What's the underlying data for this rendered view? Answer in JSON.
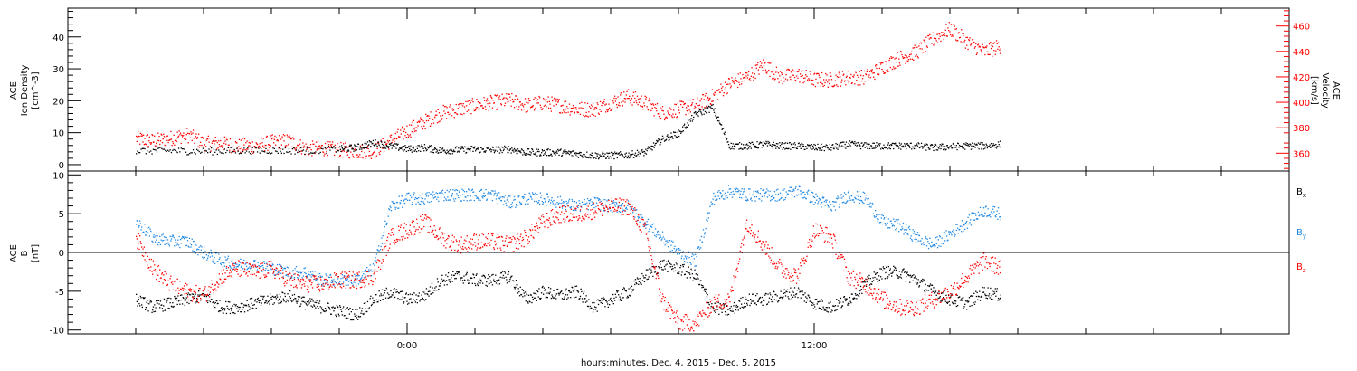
{
  "chart_data": [
    {
      "type": "scatter",
      "panel": "ion-density-velocity",
      "ylabel": [
        "ACE",
        "Ion Density",
        "[cm^-3]"
      ],
      "y2label": [
        "ACE",
        "Velocity",
        "[km/s]"
      ],
      "ylim": [
        -2,
        49
      ],
      "yticks": [
        0,
        10,
        20,
        30,
        40
      ],
      "y2lim": [
        346,
        474
      ],
      "y2ticks": [
        360,
        380,
        400,
        420,
        440,
        460
      ],
      "series": [
        {
          "color": "#000000",
          "axis": "left",
          "x": [
            -8,
            -7,
            -6,
            -5,
            -4,
            -3,
            -2,
            -1.5,
            -1,
            -0.5,
            0,
            0.5,
            1,
            1.5,
            2,
            2.5,
            3,
            3.5,
            4,
            4.5,
            5,
            5.5,
            6,
            6.5,
            7,
            7.5,
            8,
            8.5,
            9,
            9.5,
            10,
            10.5,
            11,
            11.5,
            12,
            12.5,
            13,
            13.5,
            14,
            14.5,
            15,
            15.5,
            16,
            16.5,
            17,
            17.5
          ],
          "y": [
            4.5,
            4.5,
            4.3,
            4.5,
            4.6,
            4.5,
            5,
            5.5,
            7,
            6,
            5,
            5.5,
            4.5,
            4.8,
            5,
            4.8,
            5,
            4,
            4,
            4,
            3.5,
            3,
            3,
            3.2,
            4,
            8,
            10,
            16,
            18,
            6,
            6,
            6.5,
            6,
            6,
            5.5,
            5.5,
            6.5,
            6,
            6,
            6,
            6,
            5.5,
            5.8,
            6,
            6,
            6.5
          ]
        },
        {
          "color": "#ff0000",
          "axis": "right",
          "x": [
            -8,
            -7.5,
            -7,
            -6.5,
            -6,
            -5.5,
            -5,
            -4.5,
            -4,
            -3.5,
            -3,
            -2.5,
            -2,
            -1.5,
            -1,
            -0.5,
            0,
            0.5,
            1,
            1.5,
            2,
            2.5,
            3,
            3.5,
            4,
            4.5,
            5,
            5.5,
            6,
            6.5,
            7,
            7.5,
            8,
            8.5,
            9,
            9.5,
            10,
            10.5,
            11,
            11.5,
            12,
            12.5,
            13,
            13.5,
            14,
            14.5,
            15,
            15.5,
            16,
            16.5,
            17,
            17.5
          ],
          "y": [
            372,
            370,
            372,
            375,
            368,
            368,
            366,
            366,
            369,
            370,
            364,
            364,
            363,
            362,
            362,
            370,
            378,
            385,
            392,
            395,
            398,
            400,
            402,
            398,
            400,
            398,
            395,
            395,
            400,
            405,
            400,
            392,
            395,
            398,
            405,
            415,
            420,
            430,
            420,
            422,
            418,
            418,
            420,
            420,
            428,
            435,
            440,
            450,
            458,
            448,
            440,
            445
          ]
        }
      ]
    },
    {
      "type": "scatter",
      "panel": "magnetic-field",
      "ylabel": [
        "ACE",
        "B",
        "[nT]"
      ],
      "ylim": [
        -10.5,
        10.5
      ],
      "yticks": [
        -10,
        -5,
        0,
        5,
        10
      ],
      "zero_line": true,
      "series": [
        {
          "name": "Bx",
          "color": "#000000",
          "x": [
            -8,
            -7.5,
            -7,
            -6.5,
            -6,
            -5.5,
            -5,
            -4.5,
            -4,
            -3.5,
            -3,
            -2.5,
            -2,
            -1.5,
            -1,
            -0.5,
            0,
            0.5,
            1,
            1.5,
            2,
            2.5,
            3,
            3.5,
            4,
            4.5,
            5,
            5.5,
            6,
            6.5,
            7,
            7.5,
            8,
            8.5,
            9,
            9.5,
            10,
            10.5,
            11,
            11.5,
            12,
            12.5,
            13,
            13.5,
            14,
            14.5,
            15,
            15.5,
            16,
            16.5,
            17,
            17.5
          ],
          "y": [
            -6,
            -7,
            -6.5,
            -6,
            -5.5,
            -7,
            -7,
            -6.5,
            -6,
            -5.5,
            -6.5,
            -7,
            -7.5,
            -8,
            -6,
            -5,
            -6,
            -5.5,
            -3.5,
            -3,
            -3.5,
            -3.5,
            -3,
            -6,
            -5,
            -5.5,
            -5,
            -7,
            -6,
            -5,
            -3,
            -1.5,
            -2,
            -3,
            -7,
            -7.5,
            -6,
            -6,
            -5.5,
            -5,
            -6.5,
            -7,
            -6,
            -4,
            -2.5,
            -2.5,
            -3.5,
            -5,
            -6,
            -6.5,
            -5,
            -5.5
          ]
        },
        {
          "name": "By",
          "color": "#1e88e5",
          "x": [
            -8,
            -7.5,
            -7,
            -6.5,
            -6,
            -5.5,
            -5,
            -4.5,
            -4,
            -3.5,
            -3,
            -2.5,
            -2,
            -1.5,
            -1,
            -0.5,
            0,
            0.5,
            1,
            1.5,
            2,
            2.5,
            3,
            3.5,
            4,
            4.5,
            5,
            5.5,
            6,
            6.5,
            7,
            7.5,
            8,
            8.5,
            9,
            9.5,
            10,
            10.5,
            11,
            11.5,
            12,
            12.5,
            13,
            13.5,
            14,
            14.5,
            15,
            15.5,
            16,
            16.5,
            17,
            17.5
          ],
          "y": [
            4,
            2,
            1.5,
            1.5,
            0,
            -1,
            -1.5,
            -1.5,
            -2,
            -2.5,
            -2.5,
            -3.5,
            -3.5,
            -3.5,
            -2,
            6,
            7,
            7,
            7.5,
            7.5,
            7.5,
            7.5,
            6.5,
            7,
            7,
            6.5,
            6,
            6.5,
            6,
            6,
            4,
            2,
            0,
            -1,
            7,
            8,
            7.5,
            7.5,
            7.5,
            8,
            7,
            6,
            7.5,
            7,
            4,
            3.5,
            2,
            1,
            2.5,
            4,
            5.5,
            5
          ]
        },
        {
          "name": "Bz",
          "color": "#ff0000",
          "x": [
            -8,
            -7.5,
            -7,
            -6.5,
            -6,
            -5.5,
            -5,
            -4.5,
            -4,
            -3.5,
            -3,
            -2.5,
            -2,
            -1.5,
            -1,
            -0.5,
            0,
            0.5,
            1,
            1.5,
            2,
            2.5,
            3,
            3.5,
            4,
            4.5,
            5,
            5.5,
            6,
            6.5,
            7,
            7.5,
            8,
            8.5,
            9,
            9.5,
            10,
            10.5,
            11,
            11.5,
            12,
            12.5,
            13,
            13.5,
            14,
            14.5,
            15,
            15.5,
            16,
            16.5,
            17,
            17.5
          ],
          "y": [
            2,
            -2,
            -4,
            -5,
            -5.5,
            -3,
            -2,
            -2.5,
            -2,
            -3.5,
            -4,
            -4,
            -3.5,
            -3.5,
            -3,
            2,
            3,
            4,
            2,
            1,
            1.5,
            1.5,
            1,
            2,
            4,
            5,
            5,
            5.5,
            6,
            6,
            3,
            -6,
            -9,
            -9,
            -6.5,
            -6,
            4,
            1,
            -2,
            -3,
            3,
            2,
            -3,
            -4,
            -6,
            -7,
            -7,
            -6,
            -5,
            -3,
            -1,
            -2
          ]
        }
      ]
    }
  ],
  "x_axis": {
    "xlim": [
      -10,
      26
    ],
    "ticks": [
      {
        "x": 0,
        "label": "0:00"
      },
      {
        "x": 12,
        "label": "12:00"
      }
    ],
    "minor_step": 2,
    "xlabel": "hours:minutes, Dec.  4, 2015 - Dec.  5, 2015"
  },
  "legend": {
    "bx": {
      "main": "B",
      "sub": "x"
    },
    "by": {
      "main": "B",
      "sub": "y"
    },
    "bz": {
      "main": "B",
      "sub": "z"
    }
  }
}
